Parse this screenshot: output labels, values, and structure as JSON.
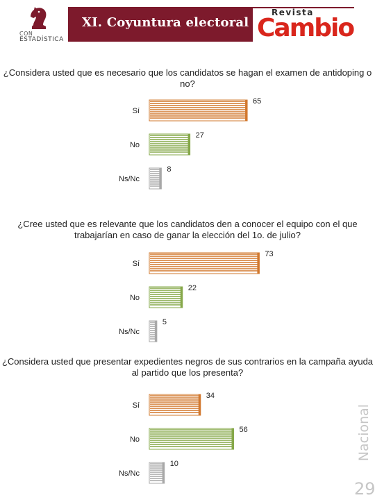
{
  "header": {
    "section_title": "XI. Coyuntura electoral",
    "logo_left_line1": "CON",
    "logo_left_line2": "ESTADÍSTICA",
    "logo_right_small": "Revista",
    "logo_right_big": "Cambio"
  },
  "side": {
    "label": "Nacional",
    "page_number": "29"
  },
  "colors": {
    "si": "#d2782e",
    "no": "#86a84a",
    "nsnc": "#a8a8a8",
    "band": "#7d1a2c",
    "cambio": "#d9261c"
  },
  "chart_data": [
    {
      "type": "bar",
      "orientation": "horizontal",
      "title": "¿Considera usted que es necesario que los candidatos se hagan el examen de antidoping o no?",
      "categories": [
        "Sí",
        "No",
        "Ns/Nc"
      ],
      "values": [
        65,
        27,
        8
      ]
    },
    {
      "type": "bar",
      "orientation": "horizontal",
      "title": "¿Cree usted que es relevante que los candidatos den a conocer el equipo con el que trabajarían en caso de ganar la elección del 1o. de julio?",
      "categories": [
        "Sí",
        "No",
        "Ns/Nc"
      ],
      "values": [
        73,
        22,
        5
      ]
    },
    {
      "type": "bar",
      "orientation": "horizontal",
      "title": "¿Considera usted que presentar expedientes negros de sus contrarios en la campaña ayuda al partido que los presenta?",
      "categories": [
        "Sí",
        "No",
        "Ns/Nc"
      ],
      "values": [
        34,
        56,
        10
      ]
    }
  ]
}
